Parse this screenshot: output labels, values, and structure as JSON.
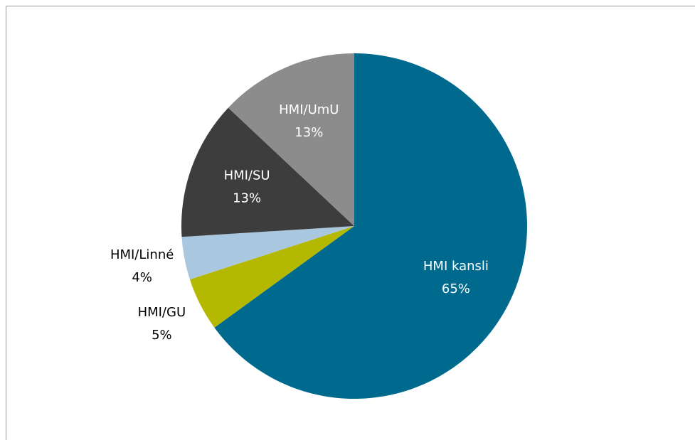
{
  "chart_data": {
    "type": "pie",
    "categories": [
      "HMI kansli",
      "HMI/GU",
      "HMI/Linné",
      "HMI/SU",
      "HMI/UmU"
    ],
    "values": [
      65,
      5,
      4,
      13,
      13
    ],
    "value_labels": [
      "65%",
      "5%",
      "4%",
      "13%",
      "13%"
    ],
    "colors": [
      "#006a8e",
      "#b5b800",
      "#a9c8e0",
      "#3d3d3d",
      "#8c8c8c"
    ]
  }
}
